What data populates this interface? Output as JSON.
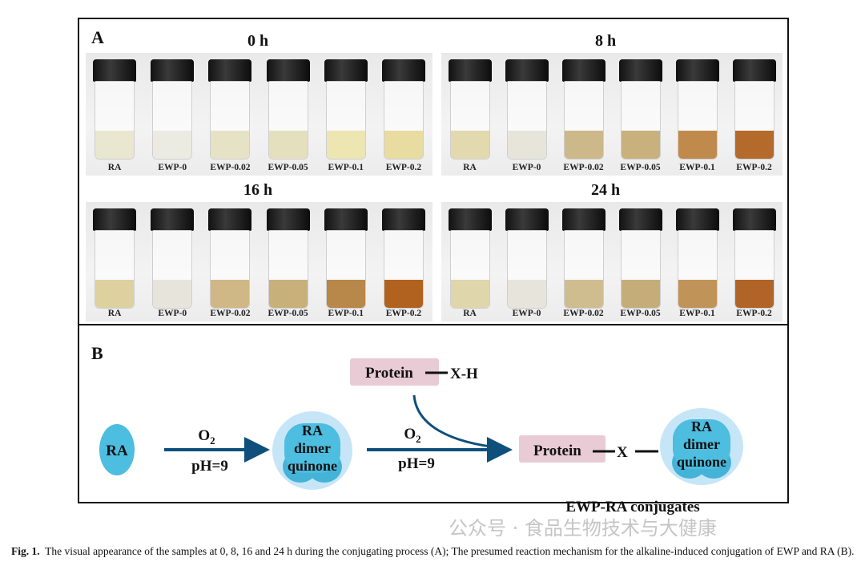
{
  "panel_a": {
    "letter": "A",
    "panels": [
      {
        "title": "0 h",
        "labels": [
          "RA",
          "EWP-0",
          "EWP-0.02",
          "EWP-0.05",
          "EWP-0.1",
          "EWP-0.2"
        ],
        "liquid_colors": [
          "#e9e7cf",
          "#ecebe2",
          "#e6e2c6",
          "#e4e0be",
          "#ede5b2",
          "#e8dca0"
        ]
      },
      {
        "title": "8 h",
        "labels": [
          "RA",
          "EWP-0",
          "EWP-0.02",
          "EWP-0.05",
          "EWP-0.1",
          "EWP-0.2"
        ],
        "liquid_colors": [
          "#e2d9ae",
          "#e7e5da",
          "#cdb88a",
          "#c8b17c",
          "#c08a4c",
          "#b46a2a"
        ]
      },
      {
        "title": "16 h",
        "labels": [
          "RA",
          "EWP-0",
          "EWP-0.02",
          "EWP-0.05",
          "EWP-0.1",
          "EWP-0.2"
        ],
        "liquid_colors": [
          "#ddd1a0",
          "#e7e5db",
          "#cfb886",
          "#c8b07a",
          "#b8874a",
          "#b0621e"
        ]
      },
      {
        "title": "24 h",
        "labels": [
          "RA",
          "EWP-0",
          "EWP-0.02",
          "EWP-0.05",
          "EWP-0.1",
          "EWP-0.2"
        ],
        "liquid_colors": [
          "#e0d6ac",
          "#e7e5db",
          "#cfbd90",
          "#c5ad7a",
          "#c09458",
          "#b06428"
        ]
      }
    ]
  },
  "panel_b": {
    "letter": "B",
    "ra": "RA",
    "arrow1_top": "O",
    "arrow1_sub": "2",
    "arrow1_bottom": "pH=9",
    "dimer_lines": [
      "RA",
      "dimer",
      "quinone"
    ],
    "arrow2_top": "O",
    "arrow2_sub": "2",
    "arrow2_bottom": "pH=9",
    "protein_reactant": "Protein",
    "protein_reactant_group": "X-H",
    "protein_product": "Protein",
    "product_linker": "X",
    "product_dimer_lines": [
      "RA",
      "dimer",
      "quinone"
    ],
    "product_label": "EWP-RA conjugates",
    "colors": {
      "blob": "#4dbde0",
      "halo": "#c6e6f7",
      "protein_box": "#e8cbd4",
      "arrow": "#0e4f7c"
    }
  },
  "caption": {
    "label": "Fig. 1.",
    "text": "The visual appearance of the samples at 0, 8, 16 and 24 h during the conjugating process (A); The presumed reaction mechanism for the alkaline-induced conjugation of EWP and RA (B)."
  },
  "watermark": "公众号 · 食品生物技术与大健康"
}
